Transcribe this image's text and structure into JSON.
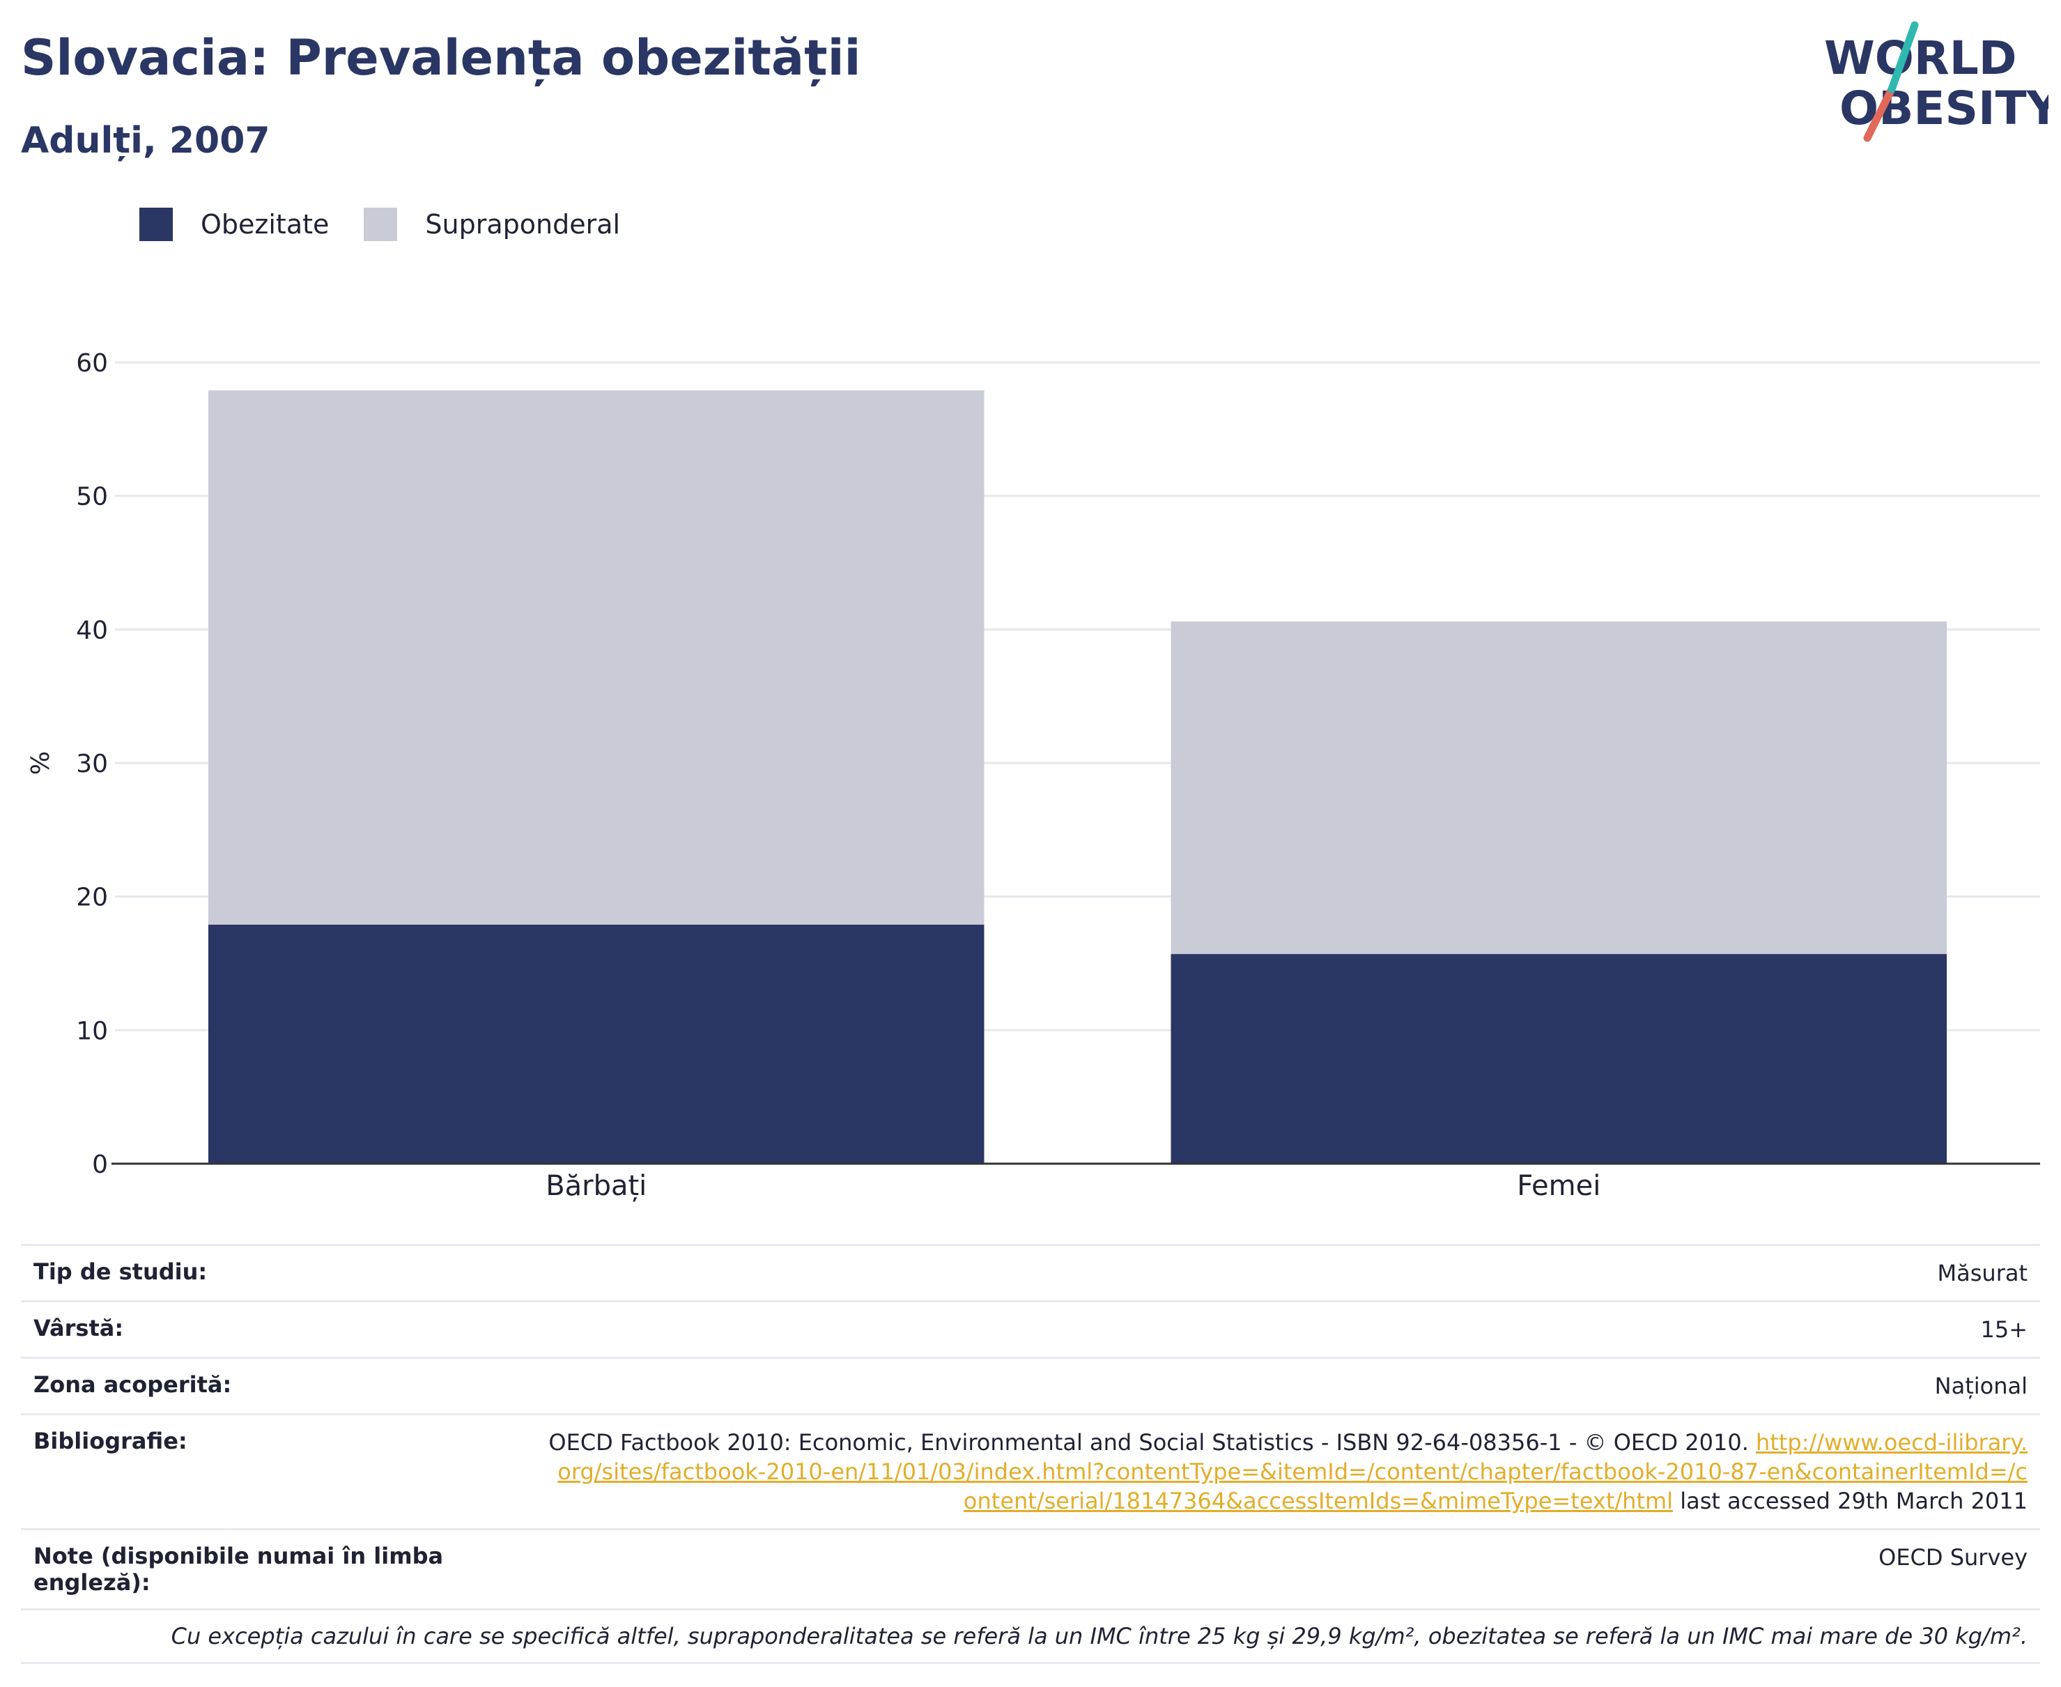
{
  "title": "Slovacia: Prevalența obezității",
  "subtitle": "Adulți, 2007",
  "logo": {
    "line1": "WORLD",
    "line2": "OBESITY"
  },
  "legend": [
    {
      "label": "Obezitate",
      "color": "#2a3664"
    },
    {
      "label": "Supraponderal",
      "color": "#c9ccd7"
    }
  ],
  "chart_data": {
    "type": "bar",
    "stacked": true,
    "categories": [
      "Bărbați",
      "Femei"
    ],
    "series": [
      {
        "name": "Obezitate",
        "values": [
          17.9,
          15.7
        ],
        "color": "#2a3664"
      },
      {
        "name": "Supraponderal",
        "values": [
          40.0,
          24.9
        ],
        "color": "#c9ccd7"
      }
    ],
    "ylabel": "%",
    "ylim": [
      0,
      60
    ],
    "yticks": [
      0,
      10,
      20,
      30,
      40,
      50,
      60
    ],
    "grid": true
  },
  "meta": {
    "study_type_label": "Tip de studiu:",
    "study_type_value": "Măsurat",
    "age_label": "Vârstă:",
    "age_value": "15+",
    "area_label": "Zona acoperită:",
    "area_value": "Național",
    "bib_label": "Bibliografie:",
    "bib_text": "OECD Factbook 2010: Economic, Environmental and Social Statistics - ISBN 92-64-08356-1 - © OECD 2010.",
    "bib_link": "http://www.oecd-ilibrary.org/sites/factbook-2010-en/11/01/03/index.html?contentType=&itemId=/content/chapter/factbook-2010-87-en&containerItemId=/content/serial/18147364&accessItemIds=&mimeType=text/html",
    "bib_suffix": "last accessed 29th March 2011",
    "notes_label": "Note (disponibile numai în limba engleză):",
    "notes_value": "OECD Survey",
    "footnote": "Cu excepția cazului în care se specifică altfel, supraponderalitatea se referă la un IMC între 25 kg și 29,9 kg/m², obezitatea se referă la un IMC mai mare de 30 kg/m²."
  }
}
